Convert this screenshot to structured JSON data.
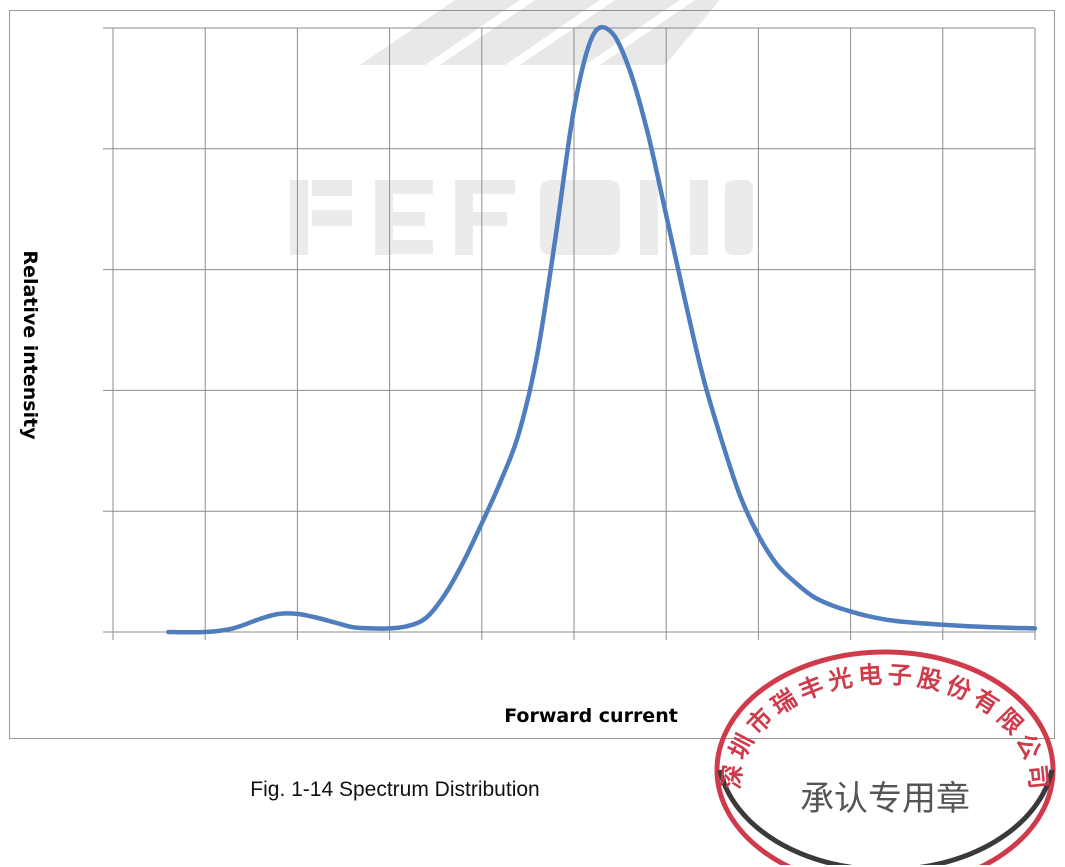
{
  "figure": {
    "caption": "Fig. 1-14 Spectrum Distribution"
  },
  "stamp": {
    "text_top": "深圳市瑞丰光电子股份有限公司",
    "text_center": "承认专用章",
    "color": "#cf3b4a"
  },
  "watermark": {
    "text": "REFOND"
  },
  "chart_data": {
    "type": "line",
    "title": "",
    "xlabel": "Forward current",
    "ylabel": "Relative intensity",
    "xlim": [
      0,
      10
    ],
    "ylim": [
      0,
      5
    ],
    "grid": true,
    "tick_labels_shown": false,
    "series": [
      {
        "color": "#4f7dbd",
        "x": [
          0.6,
          1.0,
          1.3,
          1.6,
          1.8,
          2.0,
          2.2,
          2.4,
          2.6,
          2.8,
          3.0,
          3.2,
          3.4,
          3.6,
          3.8,
          4.0,
          4.2,
          4.4,
          4.6,
          4.8,
          5.0,
          5.2,
          5.4,
          5.6,
          5.8,
          6.0,
          6.2,
          6.4,
          6.6,
          6.8,
          7.0,
          7.2,
          7.4,
          7.6,
          7.8,
          8.0,
          8.2,
          8.5,
          9.0,
          9.5,
          10.0
        ],
        "values": [
          0.0,
          0.0,
          0.03,
          0.11,
          0.15,
          0.15,
          0.12,
          0.08,
          0.04,
          0.03,
          0.03,
          0.05,
          0.12,
          0.31,
          0.58,
          0.9,
          1.24,
          1.64,
          2.29,
          3.27,
          4.33,
          4.93,
          4.97,
          4.66,
          4.13,
          3.45,
          2.76,
          2.11,
          1.59,
          1.13,
          0.8,
          0.56,
          0.41,
          0.29,
          0.22,
          0.17,
          0.13,
          0.09,
          0.06,
          0.04,
          0.03
        ]
      }
    ]
  }
}
